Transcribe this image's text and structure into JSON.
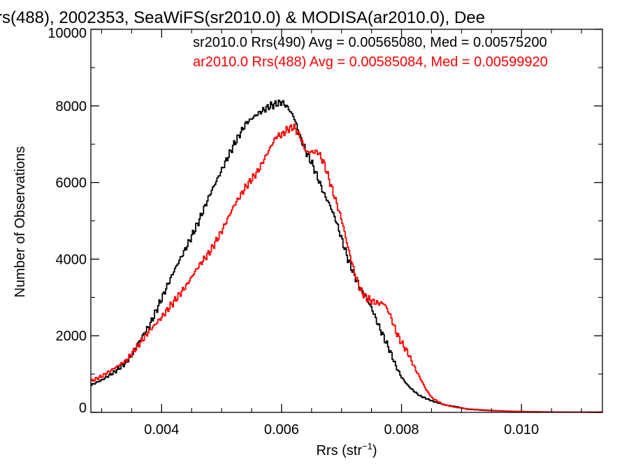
{
  "chart_data": {
    "type": "line",
    "title": "rs(488), 2002353, SeaWiFS(sr2010.0) & MODISA(ar2010.0), Dee",
    "xlabel": "Rrs (str",
    "xlabel_sup": "−1",
    "xlabel_close": ")",
    "ylabel": "Number of Observations",
    "xlim": [
      0.00282,
      0.01135
    ],
    "ylim": [
      0,
      10000
    ],
    "x_ticks": [
      {
        "value": 0.004,
        "label": "0.004"
      },
      {
        "value": 0.006,
        "label": "0.006"
      },
      {
        "value": 0.008,
        "label": "0.008"
      },
      {
        "value": 0.01,
        "label": "0.010"
      }
    ],
    "y_ticks": [
      {
        "value": 0,
        "label": "0"
      },
      {
        "value": 2000,
        "label": "2000"
      },
      {
        "value": 4000,
        "label": "4000"
      },
      {
        "value": 6000,
        "label": "6000"
      },
      {
        "value": 8000,
        "label": "8000"
      },
      {
        "value": 10000,
        "label": "10000"
      }
    ],
    "grid": false,
    "legend_position": "top-right",
    "series": [
      {
        "name": "sr2010.0 Rrs(490) Avg = 0.00565080, Med = 0.00575200",
        "color": "#000000",
        "step": true,
        "points": [
          [
            0.0028,
            700
          ],
          [
            0.003,
            850
          ],
          [
            0.0032,
            1050
          ],
          [
            0.0034,
            1300
          ],
          [
            0.0035,
            1500
          ],
          [
            0.0036,
            1800
          ],
          [
            0.0038,
            2300
          ],
          [
            0.004,
            3000
          ],
          [
            0.0042,
            3700
          ],
          [
            0.0044,
            4300
          ],
          [
            0.0046,
            4950
          ],
          [
            0.0048,
            5700
          ],
          [
            0.005,
            6350
          ],
          [
            0.0052,
            7000
          ],
          [
            0.0054,
            7550
          ],
          [
            0.0056,
            7800
          ],
          [
            0.0057,
            7900
          ],
          [
            0.0058,
            8000
          ],
          [
            0.0059,
            8050
          ],
          [
            0.006,
            8100
          ],
          [
            0.0061,
            7950
          ],
          [
            0.0062,
            7700
          ],
          [
            0.0063,
            7200
          ],
          [
            0.0064,
            6800
          ],
          [
            0.0065,
            6500
          ],
          [
            0.0066,
            6100
          ],
          [
            0.0067,
            5700
          ],
          [
            0.0068,
            5400
          ],
          [
            0.0069,
            5000
          ],
          [
            0.007,
            4500
          ],
          [
            0.0071,
            4000
          ],
          [
            0.0072,
            3600
          ],
          [
            0.0073,
            3250
          ],
          [
            0.0074,
            3000
          ],
          [
            0.0075,
            2700
          ],
          [
            0.0076,
            2300
          ],
          [
            0.0077,
            1950
          ],
          [
            0.0078,
            1600
          ],
          [
            0.0079,
            1200
          ],
          [
            0.008,
            900
          ],
          [
            0.0081,
            700
          ],
          [
            0.0082,
            550
          ],
          [
            0.0083,
            430
          ],
          [
            0.0085,
            300
          ],
          [
            0.0087,
            200
          ],
          [
            0.0089,
            150
          ],
          [
            0.0091,
            80
          ],
          [
            0.0094,
            50
          ],
          [
            0.0098,
            30
          ],
          [
            0.0102,
            15
          ],
          [
            0.0108,
            8
          ],
          [
            0.01135,
            5
          ]
        ]
      },
      {
        "name": "ar2010.0 Rrs(488) Avg = 0.00585084, Med = 0.00599920",
        "color": "#ff0000",
        "step": true,
        "points": [
          [
            0.0028,
            800
          ],
          [
            0.003,
            950
          ],
          [
            0.0032,
            1150
          ],
          [
            0.0034,
            1350
          ],
          [
            0.0035,
            1550
          ],
          [
            0.0036,
            1750
          ],
          [
            0.0038,
            2150
          ],
          [
            0.004,
            2500
          ],
          [
            0.0042,
            2900
          ],
          [
            0.0044,
            3300
          ],
          [
            0.0046,
            3800
          ],
          [
            0.0048,
            4200
          ],
          [
            0.005,
            4750
          ],
          [
            0.0052,
            5400
          ],
          [
            0.0054,
            5900
          ],
          [
            0.0056,
            6300
          ],
          [
            0.0057,
            6600
          ],
          [
            0.0058,
            6900
          ],
          [
            0.0059,
            7200
          ],
          [
            0.006,
            7250
          ],
          [
            0.0061,
            7400
          ],
          [
            0.0062,
            7450
          ],
          [
            0.0063,
            7200
          ],
          [
            0.0064,
            6800
          ],
          [
            0.0065,
            6800
          ],
          [
            0.0066,
            6800
          ],
          [
            0.0067,
            6500
          ],
          [
            0.0068,
            6000
          ],
          [
            0.0069,
            5500
          ],
          [
            0.007,
            5000
          ],
          [
            0.0071,
            4300
          ],
          [
            0.0072,
            3700
          ],
          [
            0.0073,
            3200
          ],
          [
            0.0074,
            3000
          ],
          [
            0.0075,
            2900
          ],
          [
            0.0076,
            2850
          ],
          [
            0.0077,
            2850
          ],
          [
            0.0078,
            2550
          ],
          [
            0.0079,
            2100
          ],
          [
            0.008,
            1800
          ],
          [
            0.0081,
            1550
          ],
          [
            0.0082,
            1200
          ],
          [
            0.0083,
            900
          ],
          [
            0.0084,
            600
          ],
          [
            0.0085,
            380
          ],
          [
            0.0086,
            280
          ],
          [
            0.0087,
            200
          ],
          [
            0.0089,
            130
          ],
          [
            0.0091,
            90
          ],
          [
            0.0094,
            60
          ],
          [
            0.0098,
            30
          ],
          [
            0.0102,
            15
          ],
          [
            0.0108,
            8
          ],
          [
            0.01135,
            5
          ]
        ]
      }
    ]
  }
}
